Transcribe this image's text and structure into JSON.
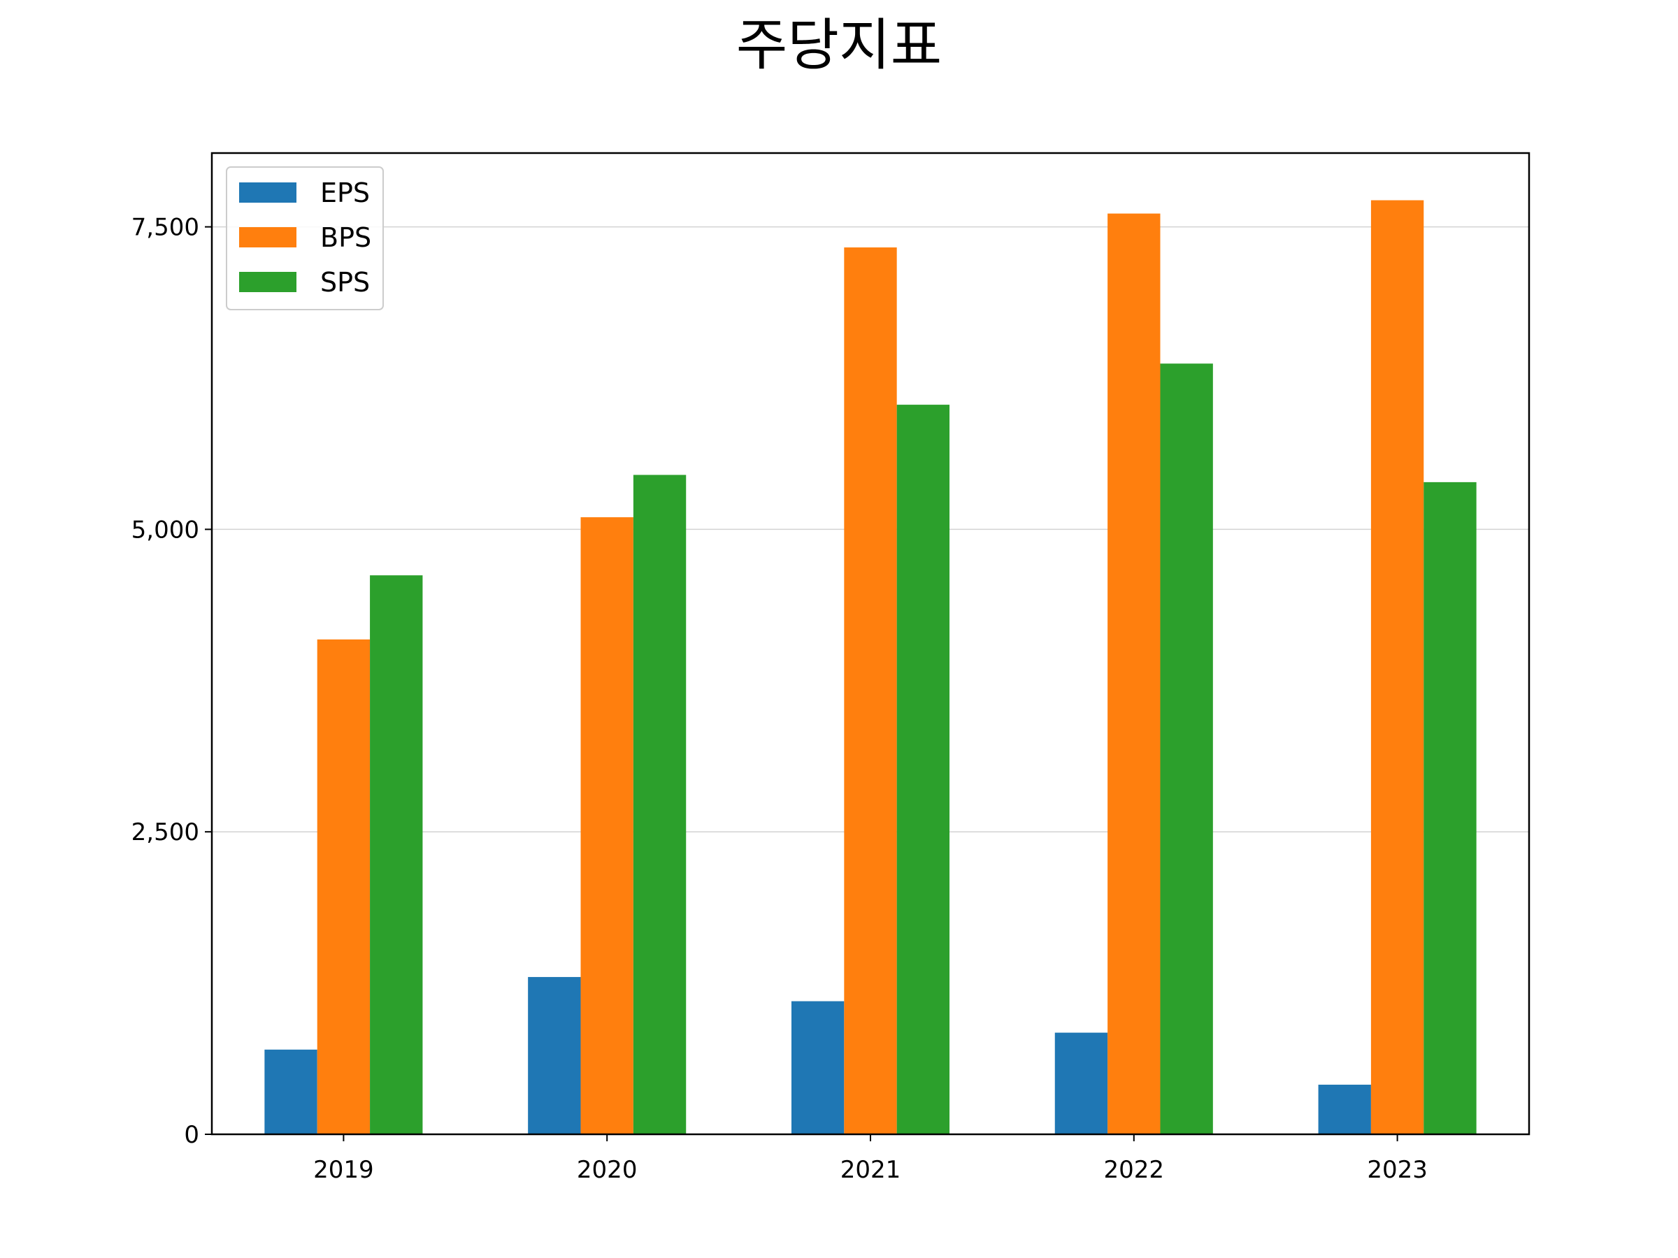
{
  "chart_data": {
    "type": "bar",
    "title": "주당지표",
    "xlabel": "",
    "ylabel": "",
    "categories": [
      "2019",
      "2020",
      "2021",
      "2022",
      "2023"
    ],
    "series": [
      {
        "name": "EPS",
        "color": "#1f77b4",
        "values": [
          700,
          1300,
          1100,
          840,
          410
        ]
      },
      {
        "name": "BPS",
        "color": "#ff7f0e",
        "values": [
          4090,
          5100,
          7330,
          7610,
          7720
        ]
      },
      {
        "name": "SPS",
        "color": "#2ca02c",
        "values": [
          4620,
          5450,
          6030,
          6370,
          5390
        ]
      }
    ],
    "ylim": [
      0,
      8110
    ],
    "yticks": [
      {
        "value": 0,
        "label": "0"
      },
      {
        "value": 2500,
        "label": "2,500"
      },
      {
        "value": 5000,
        "label": "5,000"
      },
      {
        "value": 7500,
        "label": "7,500"
      }
    ],
    "grid": "horizontal",
    "legend_position": "top-left"
  }
}
